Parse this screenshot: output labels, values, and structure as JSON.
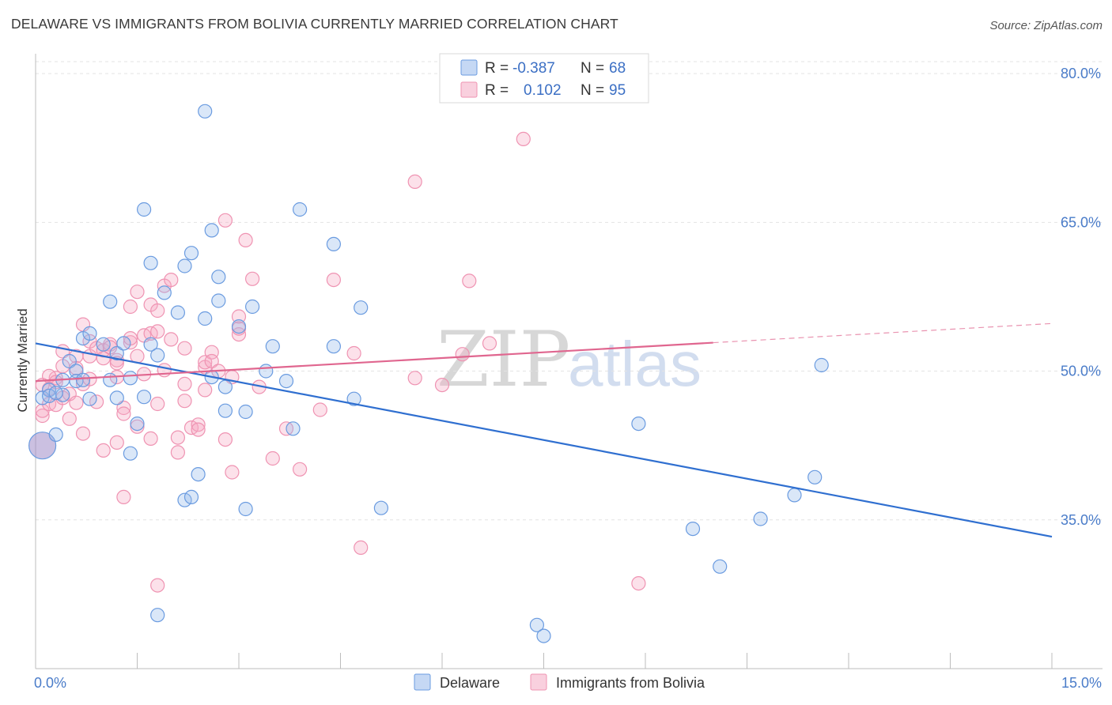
{
  "header": {
    "title": "DELAWARE VS IMMIGRANTS FROM BOLIVIA CURRENTLY MARRIED CORRELATION CHART",
    "source": "Source: ZipAtlas.com"
  },
  "watermark": {
    "zip": "ZIP",
    "atlas": "atlas"
  },
  "legend": {
    "rows": [
      {
        "r_label": "R =",
        "r_value": "-0.387",
        "n_label": "N =",
        "n_value": "68"
      },
      {
        "r_label": "R =",
        "r_value": "0.102",
        "n_label": "N =",
        "n_value": "95"
      }
    ]
  },
  "colors": {
    "blue": "#6a9be0",
    "pink": "#ef93b2",
    "blue_line": "#2f6fd0",
    "pink_line": "#e0668f",
    "tick_text": "#4a7cc9"
  },
  "chart_data": {
    "type": "scatter",
    "title": "DELAWARE VS IMMIGRANTS FROM BOLIVIA CURRENTLY MARRIED CORRELATION CHART",
    "xlabel": "",
    "ylabel": "Currently Married",
    "xlim": [
      0,
      15
    ],
    "ylim": [
      20,
      82
    ],
    "x_ticks": [
      {
        "value": 0,
        "label": "0.0%"
      },
      {
        "value": 15,
        "label": "15.0%"
      }
    ],
    "y_ticks": [
      {
        "value": 35,
        "label": "35.0%"
      },
      {
        "value": 50,
        "label": "50.0%"
      },
      {
        "value": 65,
        "label": "65.0%"
      },
      {
        "value": 80,
        "label": "80.0%"
      }
    ],
    "grid": true,
    "legend_position": "top-center",
    "series": [
      {
        "name": "Delaware",
        "color": "#6a9be0",
        "trend": {
          "x": [
            0,
            15
          ],
          "y": [
            52.8,
            33.3
          ],
          "dashed_from": null
        },
        "points": [
          [
            0.1,
            42.5
          ],
          [
            0.1,
            47.3
          ],
          [
            0.2,
            48.1
          ],
          [
            0.2,
            47.5
          ],
          [
            0.3,
            43.6
          ],
          [
            0.4,
            47.6
          ],
          [
            0.4,
            49.1
          ],
          [
            0.5,
            51.0
          ],
          [
            0.6,
            50.0
          ],
          [
            0.6,
            49.0
          ],
          [
            0.7,
            53.3
          ],
          [
            0.8,
            53.8
          ],
          [
            0.7,
            49.1
          ],
          [
            0.8,
            47.2
          ],
          [
            1.0,
            52.7
          ],
          [
            1.1,
            49.1
          ],
          [
            1.2,
            47.3
          ],
          [
            1.2,
            51.8
          ],
          [
            1.1,
            57.0
          ],
          [
            1.4,
            49.3
          ],
          [
            1.4,
            41.7
          ],
          [
            1.5,
            44.7
          ],
          [
            1.6,
            47.4
          ],
          [
            1.6,
            66.3
          ],
          [
            1.7,
            52.7
          ],
          [
            1.7,
            60.9
          ],
          [
            1.8,
            51.6
          ],
          [
            1.9,
            57.9
          ],
          [
            1.8,
            25.4
          ],
          [
            2.1,
            55.9
          ],
          [
            2.2,
            60.6
          ],
          [
            2.3,
            61.9
          ],
          [
            2.2,
            37.0
          ],
          [
            2.3,
            37.3
          ],
          [
            2.4,
            39.6
          ],
          [
            2.5,
            55.3
          ],
          [
            2.5,
            76.2
          ],
          [
            2.6,
            64.2
          ],
          [
            2.6,
            49.4
          ],
          [
            2.7,
            59.5
          ],
          [
            2.7,
            57.1
          ],
          [
            2.8,
            48.4
          ],
          [
            2.8,
            46.0
          ],
          [
            3.0,
            54.5
          ],
          [
            3.2,
            56.5
          ],
          [
            3.1,
            36.1
          ],
          [
            3.1,
            45.9
          ],
          [
            3.4,
            50.0
          ],
          [
            3.5,
            52.5
          ],
          [
            3.7,
            49.0
          ],
          [
            3.8,
            44.2
          ],
          [
            3.9,
            66.3
          ],
          [
            4.4,
            62.8
          ],
          [
            4.4,
            52.5
          ],
          [
            4.7,
            47.2
          ],
          [
            4.8,
            56.4
          ],
          [
            5.1,
            36.2
          ],
          [
            7.4,
            24.4
          ],
          [
            7.5,
            23.3
          ],
          [
            8.9,
            44.7
          ],
          [
            9.7,
            34.1
          ],
          [
            10.1,
            30.3
          ],
          [
            10.7,
            35.1
          ],
          [
            11.2,
            37.5
          ],
          [
            11.5,
            39.3
          ],
          [
            11.6,
            50.6
          ],
          [
            0.3,
            47.8
          ],
          [
            1.3,
            52.8
          ]
        ]
      },
      {
        "name": "Immigrants from Bolivia",
        "color": "#ef93b2",
        "trend": {
          "x": [
            0,
            15
          ],
          "y": [
            49.0,
            54.8
          ],
          "dashed_from": 10
        },
        "points": [
          [
            0.1,
            45.5
          ],
          [
            0.1,
            46.0
          ],
          [
            0.2,
            46.7
          ],
          [
            0.2,
            48.2
          ],
          [
            0.3,
            49.3
          ],
          [
            0.3,
            46.6
          ],
          [
            0.4,
            47.3
          ],
          [
            0.4,
            50.5
          ],
          [
            0.4,
            52.0
          ],
          [
            0.5,
            45.2
          ],
          [
            0.5,
            47.7
          ],
          [
            0.6,
            46.8
          ],
          [
            0.6,
            51.5
          ],
          [
            0.7,
            48.7
          ],
          [
            0.7,
            43.7
          ],
          [
            0.7,
            54.7
          ],
          [
            0.8,
            51.5
          ],
          [
            0.8,
            49.2
          ],
          [
            0.8,
            53.0
          ],
          [
            0.9,
            46.9
          ],
          [
            0.9,
            52.3
          ],
          [
            1.0,
            51.3
          ],
          [
            1.0,
            52.1
          ],
          [
            1.0,
            42.0
          ],
          [
            1.1,
            52.7
          ],
          [
            1.2,
            51.1
          ],
          [
            1.2,
            49.4
          ],
          [
            1.2,
            42.8
          ],
          [
            1.3,
            46.3
          ],
          [
            1.3,
            37.3
          ],
          [
            1.3,
            45.7
          ],
          [
            1.4,
            52.9
          ],
          [
            1.4,
            53.3
          ],
          [
            1.4,
            56.5
          ],
          [
            1.5,
            51.5
          ],
          [
            1.5,
            58.0
          ],
          [
            1.5,
            44.4
          ],
          [
            1.6,
            49.7
          ],
          [
            1.6,
            53.6
          ],
          [
            1.7,
            53.8
          ],
          [
            1.7,
            56.7
          ],
          [
            1.7,
            43.2
          ],
          [
            1.8,
            56.1
          ],
          [
            1.8,
            54.0
          ],
          [
            1.8,
            46.7
          ],
          [
            1.8,
            28.4
          ],
          [
            1.9,
            50.1
          ],
          [
            1.9,
            58.6
          ],
          [
            2.0,
            59.2
          ],
          [
            2.1,
            43.3
          ],
          [
            2.1,
            41.8
          ],
          [
            2.2,
            52.3
          ],
          [
            2.2,
            48.7
          ],
          [
            2.2,
            47.0
          ],
          [
            2.3,
            44.3
          ],
          [
            2.4,
            44.6
          ],
          [
            2.4,
            44.1
          ],
          [
            2.5,
            50.4
          ],
          [
            2.5,
            48.1
          ],
          [
            2.5,
            50.9
          ],
          [
            2.6,
            51.9
          ],
          [
            2.6,
            51.0
          ],
          [
            2.7,
            50.0
          ],
          [
            2.8,
            43.1
          ],
          [
            2.8,
            65.2
          ],
          [
            2.9,
            39.8
          ],
          [
            2.9,
            49.4
          ],
          [
            3.0,
            53.7
          ],
          [
            3.0,
            55.5
          ],
          [
            3.1,
            63.2
          ],
          [
            3.2,
            59.3
          ],
          [
            3.3,
            48.4
          ],
          [
            3.5,
            41.2
          ],
          [
            3.7,
            44.2
          ],
          [
            3.9,
            40.1
          ],
          [
            4.2,
            46.1
          ],
          [
            4.4,
            59.2
          ],
          [
            4.7,
            51.8
          ],
          [
            4.8,
            32.2
          ],
          [
            5.6,
            49.3
          ],
          [
            5.6,
            69.1
          ],
          [
            6.0,
            48.6
          ],
          [
            6.3,
            51.7
          ],
          [
            6.4,
            59.1
          ],
          [
            6.7,
            52.8
          ],
          [
            7.2,
            73.4
          ],
          [
            8.9,
            28.6
          ],
          [
            0.1,
            48.6
          ],
          [
            0.2,
            49.5
          ],
          [
            0.6,
            50.3
          ],
          [
            1.1,
            52.4
          ],
          [
            1.2,
            50.8
          ],
          [
            2.0,
            53.2
          ],
          [
            3.0,
            54.3
          ],
          [
            0.3,
            48.9
          ]
        ]
      }
    ]
  }
}
